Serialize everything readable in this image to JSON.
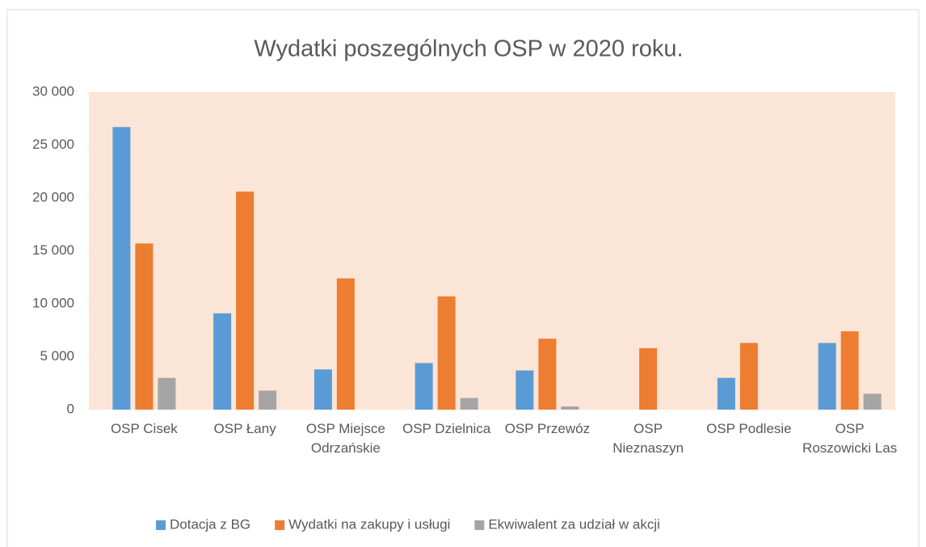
{
  "chart_data": {
    "type": "bar",
    "title": "Wydatki poszególnych OSP w 2020 roku.",
    "categories": [
      "OSP Cisek",
      "OSP Łany",
      "OSP Miejsce Odrzańskie",
      "OSP Dzielnica",
      "OSP Przewóz",
      "OSP Nieznaszyn",
      "OSP Podlesie",
      "OSP Roszowicki Las"
    ],
    "series": [
      {
        "name": "Dotacja z BG",
        "color": "#5b9bd5",
        "values": [
          26700,
          9100,
          3800,
          4400,
          3700,
          0,
          3000,
          6300
        ]
      },
      {
        "name": "Wydatki na zakupy i usługi",
        "color": "#ed7d31",
        "values": [
          15700,
          20600,
          12400,
          10700,
          6700,
          5800,
          6300,
          7400
        ]
      },
      {
        "name": "Ekwiwalent za udział w akcji",
        "color": "#a5a5a5",
        "values": [
          3000,
          1800,
          0,
          1100,
          300,
          0,
          0,
          1500
        ]
      }
    ],
    "ylim": [
      0,
      30000
    ],
    "yticks": [
      0,
      {
        "value": 5000,
        "label": "5 000"
      },
      {
        "value": 10000,
        "label": "10 000"
      },
      {
        "value": 15000,
        "label": "15 000"
      },
      {
        "value": 20000,
        "label": "20 000"
      },
      {
        "value": 25000,
        "label": "25 000"
      },
      {
        "value": 30000,
        "label": "30 000"
      }
    ],
    "legend": "bottom"
  }
}
